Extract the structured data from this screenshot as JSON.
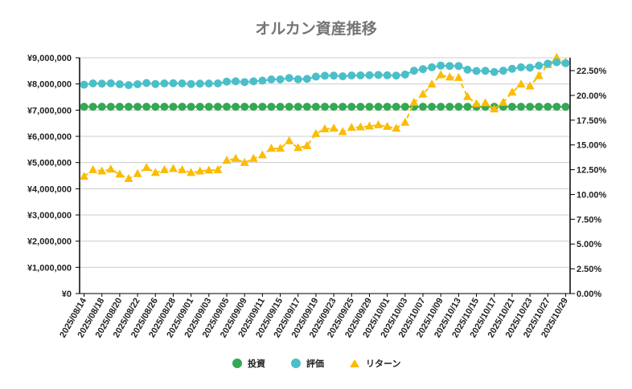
{
  "chart_data": {
    "type": "line",
    "title": "オルカン資産推移",
    "xlabel": "",
    "ylabel": "",
    "y_left": {
      "min": 0,
      "max": 9000000,
      "step": 1000000,
      "tick_labels": [
        "¥0",
        "¥1,000,000",
        "¥2,000,000",
        "¥3,000,000",
        "¥4,000,000",
        "¥5,000,000",
        "¥6,000,000",
        "¥7,000,000",
        "¥8,000,000",
        "¥9,000,000"
      ]
    },
    "y_right": {
      "min": 0,
      "max": 23.8,
      "step": 2.5,
      "tick_labels": [
        "0.00%",
        "2.50%",
        "5.00%",
        "7.50%",
        "10.00%",
        "12.50%",
        "15.00%",
        "17.50%",
        "20.00%",
        "22.50%"
      ]
    },
    "grid": true,
    "legend_position": "bottom",
    "x": [
      "2025/08/14",
      "2025/08/15",
      "2025/08/18",
      "2025/08/19",
      "2025/08/20",
      "2025/08/21",
      "2025/08/22",
      "2025/08/25",
      "2025/08/26",
      "2025/08/27",
      "2025/08/28",
      "2025/08/29",
      "2025/09/01",
      "2025/09/02",
      "2025/09/03",
      "2025/09/04",
      "2025/09/05",
      "2025/09/08",
      "2025/09/09",
      "2025/09/10",
      "2025/09/11",
      "2025/09/12",
      "2025/09/15",
      "2025/09/16",
      "2025/09/17",
      "2025/09/18",
      "2025/09/19",
      "2025/09/22",
      "2025/09/23",
      "2025/09/24",
      "2025/09/25",
      "2025/09/26",
      "2025/09/29",
      "2025/09/30",
      "2025/10/01",
      "2025/10/02",
      "2025/10/03",
      "2025/10/06",
      "2025/10/07",
      "2025/10/08",
      "2025/10/09",
      "2025/10/10",
      "2025/10/13",
      "2025/10/14",
      "2025/10/15",
      "2025/10/16",
      "2025/10/17",
      "2025/10/20",
      "2025/10/21",
      "2025/10/22",
      "2025/10/23",
      "2025/10/24",
      "2025/10/27",
      "2025/10/28",
      "2025/10/29"
    ],
    "x_tick_labels": [
      "2025/08/14",
      "2025/08/18",
      "2025/08/20",
      "2025/08/22",
      "2025/08/26",
      "2025/08/28",
      "2025/09/01",
      "2025/09/03",
      "2025/09/05",
      "2025/09/09",
      "2025/09/11",
      "2025/09/15",
      "2025/09/17",
      "2025/09/19",
      "2025/09/23",
      "2025/09/25",
      "2025/09/29",
      "2025/10/01",
      "2025/10/03",
      "2025/10/07",
      "2025/10/09",
      "2025/10/13",
      "2025/10/15",
      "2025/10/17",
      "2025/10/21",
      "2025/10/23",
      "2025/10/27",
      "2025/10/29"
    ],
    "series": [
      {
        "name": "投資",
        "axis": "left",
        "color": "#34a853",
        "marker": "circle",
        "values": [
          7130000,
          7130000,
          7130000,
          7130000,
          7130000,
          7130000,
          7130000,
          7130000,
          7130000,
          7130000,
          7130000,
          7130000,
          7130000,
          7130000,
          7130000,
          7130000,
          7130000,
          7130000,
          7130000,
          7130000,
          7130000,
          7130000,
          7130000,
          7130000,
          7130000,
          7130000,
          7130000,
          7130000,
          7130000,
          7130000,
          7130000,
          7130000,
          7130000,
          7130000,
          7130000,
          7130000,
          7130000,
          7130000,
          7130000,
          7130000,
          7130000,
          7130000,
          7130000,
          7130000,
          7130000,
          7130000,
          7130000,
          7130000,
          7130000,
          7130000,
          7130000,
          7130000,
          7130000,
          7130000,
          7130000
        ]
      },
      {
        "name": "評価",
        "axis": "left",
        "color": "#4bbfc9",
        "marker": "circle",
        "values": [
          7972000,
          8020000,
          8011000,
          8024000,
          7988000,
          7956000,
          7991000,
          8036000,
          7999000,
          8020000,
          8028000,
          8020000,
          7999000,
          8011000,
          8017000,
          8020000,
          8088000,
          8101000,
          8072000,
          8101000,
          8126000,
          8174000,
          8174000,
          8228000,
          8178000,
          8193000,
          8279000,
          8314000,
          8319000,
          8294000,
          8324000,
          8328000,
          8334000,
          8343000,
          8331000,
          8319000,
          8361000,
          8505000,
          8565000,
          8636000,
          8703000,
          8687000,
          8684000,
          8545000,
          8495000,
          8501000,
          8457000,
          8505000,
          8578000,
          8636000,
          8622000,
          8697000,
          8776000,
          8828000,
          8793000
        ]
      },
      {
        "name": "リターン",
        "axis": "right",
        "color": "#fbbc04",
        "marker": "triangle",
        "values": [
          11.81,
          12.48,
          12.35,
          12.54,
          12.03,
          11.59,
          12.08,
          12.7,
          12.19,
          12.48,
          12.6,
          12.48,
          12.19,
          12.35,
          12.44,
          12.48,
          13.43,
          13.62,
          13.21,
          13.62,
          13.97,
          14.64,
          14.64,
          15.4,
          14.7,
          14.91,
          16.12,
          16.61,
          16.67,
          16.32,
          16.75,
          16.8,
          16.88,
          17.01,
          16.85,
          16.67,
          17.26,
          19.28,
          20.12,
          21.12,
          22.06,
          21.84,
          21.79,
          19.85,
          19.15,
          19.23,
          18.61,
          19.28,
          20.31,
          21.12,
          20.93,
          21.98,
          23.08,
          23.81,
          23.33
        ]
      }
    ]
  }
}
